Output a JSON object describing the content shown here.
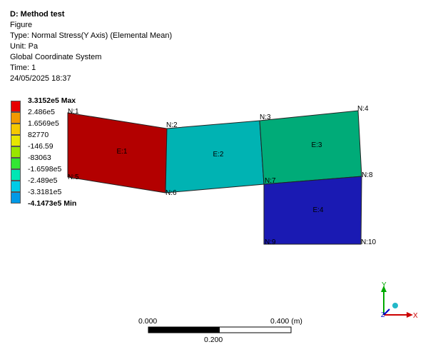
{
  "header": {
    "title": "D: Method test",
    "line1": "Figure",
    "line2": "Type: Normal Stress(Y Axis) (Elemental Mean)",
    "line3": "Unit: Pa",
    "line4": "Global Coordinate System",
    "line5": "Time: 1",
    "line6": "24/05/2025 18:37"
  },
  "legend": {
    "labels": [
      "3.3152e5 Max",
      "2.486e5",
      "1.6569e5",
      "82770",
      "-146.59",
      "-83063",
      "-1.6598e5",
      "-2.489e5",
      "-3.3181e5",
      "-4.1473e5 Min"
    ],
    "colors": [
      "#e60000",
      "#f29900",
      "#f5c800",
      "#e7e600",
      "#99e600",
      "#33e633",
      "#00e6b4",
      "#00cbe6",
      "#0099e6",
      "#1a1ae6"
    ]
  },
  "mesh": {
    "elements": [
      {
        "label": "E:1",
        "color": "#b30000"
      },
      {
        "label": "E:2",
        "color": "#00b3b3"
      },
      {
        "label": "E:3",
        "color": "#00ab78"
      },
      {
        "label": "E:4",
        "color": "#1a1ab3"
      }
    ],
    "nodes": [
      "N:1",
      "N:2",
      "N:3",
      "N:4",
      "N:5",
      "N:6",
      "N:7",
      "N:8",
      "N:9",
      "N:10"
    ]
  },
  "scale_bar": {
    "left": "0.000",
    "right": "0.400 (m)",
    "middle": "0.200"
  },
  "triad": {
    "x": "X",
    "y": "Y",
    "z": "Z"
  }
}
